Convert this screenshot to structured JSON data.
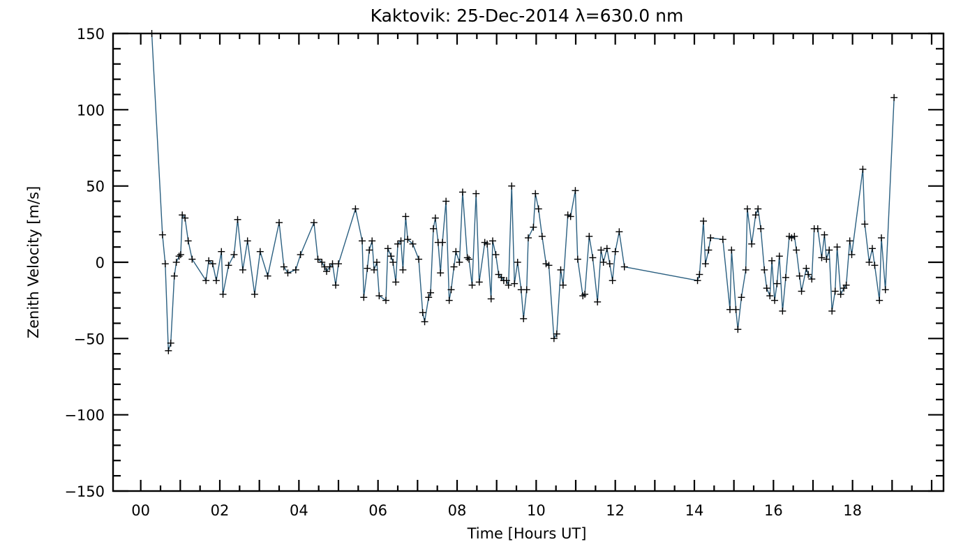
{
  "chart_data": {
    "type": "line",
    "title": "Kaktovik: 25-Dec-2014 λ=630.0 nm",
    "xlabel": "Time [Hours UT]",
    "ylabel": "Zenith Velocity [m/s]",
    "xlim": [
      -0.7,
      20.3
    ],
    "ylim": [
      -150,
      150
    ],
    "xticks": [
      0,
      2,
      4,
      6,
      8,
      10,
      12,
      14,
      16,
      18
    ],
    "xtick_labels": [
      "00",
      "02",
      "04",
      "06",
      "08",
      "10",
      "12",
      "14",
      "16",
      "18"
    ],
    "yticks": [
      150,
      100,
      50,
      0,
      -50,
      -100,
      -150
    ],
    "ytick_labels": [
      "150",
      "100",
      "50",
      "0",
      "−100",
      "−150"
    ],
    "ytick_labels_full": [
      "150",
      "100",
      "50",
      "0",
      "−50",
      "−100",
      "−150"
    ],
    "grid": false,
    "line_color": "#2a5f80",
    "marker": "+",
    "series": [
      {
        "points": [
          [
            0.28,
            150
          ],
          [
            0.55,
            18
          ],
          [
            0.62,
            -1
          ],
          [
            0.7,
            -58
          ],
          [
            0.76,
            -53
          ],
          [
            0.85,
            -9
          ],
          [
            0.9,
            0
          ],
          [
            0.97,
            4
          ],
          [
            1.01,
            5
          ],
          [
            1.05,
            31
          ],
          [
            1.12,
            29
          ],
          [
            1.2,
            14
          ],
          [
            1.3,
            2
          ],
          [
            1.65,
            -12
          ],
          [
            1.72,
            1
          ],
          [
            1.82,
            -1
          ],
          [
            1.91,
            -12
          ],
          [
            2.04,
            7
          ],
          [
            2.08,
            -21
          ],
          [
            2.22,
            -2
          ],
          [
            2.36,
            5
          ],
          [
            2.45,
            28
          ],
          [
            2.58,
            -5
          ],
          [
            2.7,
            14
          ],
          [
            2.88,
            -21
          ],
          [
            3.02,
            7
          ],
          [
            3.21,
            -9
          ],
          [
            3.5,
            26
          ],
          [
            3.62,
            -3
          ],
          [
            3.72,
            -7
          ],
          [
            3.92,
            -5
          ],
          [
            4.04,
            5
          ],
          [
            4.38,
            26
          ],
          [
            4.48,
            2
          ],
          [
            4.58,
            0
          ],
          [
            4.65,
            -3
          ],
          [
            4.7,
            -6
          ],
          [
            4.78,
            -3
          ],
          [
            4.85,
            -1
          ],
          [
            4.93,
            -15
          ],
          [
            5.0,
            -1
          ],
          [
            5.43,
            35
          ],
          [
            5.6,
            14
          ],
          [
            5.64,
            -23
          ],
          [
            5.73,
            -4
          ],
          [
            5.78,
            8
          ],
          [
            5.85,
            14
          ],
          [
            5.9,
            -5
          ],
          [
            5.97,
            0
          ],
          [
            6.03,
            -22
          ],
          [
            6.2,
            -25
          ],
          [
            6.25,
            9
          ],
          [
            6.33,
            4
          ],
          [
            6.38,
            0
          ],
          [
            6.45,
            -13
          ],
          [
            6.5,
            12
          ],
          [
            6.58,
            14
          ],
          [
            6.63,
            -5
          ],
          [
            6.7,
            30
          ],
          [
            6.75,
            15
          ],
          [
            6.88,
            12
          ],
          [
            7.03,
            2
          ],
          [
            7.13,
            -33
          ],
          [
            7.18,
            -39
          ],
          [
            7.28,
            -23
          ],
          [
            7.33,
            -20
          ],
          [
            7.4,
            22
          ],
          [
            7.45,
            29
          ],
          [
            7.52,
            13
          ],
          [
            7.58,
            -7
          ],
          [
            7.63,
            13
          ],
          [
            7.72,
            40
          ],
          [
            7.8,
            -25
          ],
          [
            7.85,
            -18
          ],
          [
            7.92,
            -3
          ],
          [
            7.97,
            7
          ],
          [
            8.06,
            0
          ],
          [
            8.14,
            46
          ],
          [
            8.26,
            3
          ],
          [
            8.3,
            2
          ],
          [
            8.38,
            -15
          ],
          [
            8.48,
            45
          ],
          [
            8.56,
            -13
          ],
          [
            8.7,
            13
          ],
          [
            8.76,
            12
          ],
          [
            8.86,
            -24
          ],
          [
            8.9,
            14
          ],
          [
            8.98,
            5
          ],
          [
            9.05,
            -8
          ],
          [
            9.12,
            -10
          ],
          [
            9.18,
            -12
          ],
          [
            9.25,
            -12
          ],
          [
            9.3,
            -15
          ],
          [
            9.38,
            50
          ],
          [
            9.45,
            -14
          ],
          [
            9.53,
            0
          ],
          [
            9.62,
            -18
          ],
          [
            9.68,
            -37
          ],
          [
            9.76,
            -18
          ],
          [
            9.8,
            16
          ],
          [
            9.93,
            23
          ],
          [
            9.98,
            45
          ],
          [
            10.06,
            35
          ],
          [
            10.15,
            17
          ],
          [
            10.25,
            -1
          ],
          [
            10.32,
            -2
          ],
          [
            10.45,
            -50
          ],
          [
            10.52,
            -47
          ],
          [
            10.62,
            -5
          ],
          [
            10.68,
            -15
          ],
          [
            10.8,
            31
          ],
          [
            10.87,
            30
          ],
          [
            10.99,
            47
          ],
          [
            11.05,
            2
          ],
          [
            11.18,
            -22
          ],
          [
            11.23,
            -21
          ],
          [
            11.34,
            17
          ],
          [
            11.43,
            3
          ],
          [
            11.55,
            -26
          ],
          [
            11.64,
            8
          ],
          [
            11.7,
            0
          ],
          [
            11.79,
            9
          ],
          [
            11.86,
            -1
          ],
          [
            11.93,
            -12
          ],
          [
            12.0,
            7
          ],
          [
            12.1,
            20
          ],
          [
            12.23,
            -3
          ],
          [
            14.08,
            -12
          ],
          [
            14.13,
            -8
          ],
          [
            14.23,
            27
          ],
          [
            14.28,
            -1
          ],
          [
            14.36,
            8
          ],
          [
            14.41,
            16
          ],
          [
            14.72,
            15
          ],
          [
            14.9,
            -31
          ],
          [
            14.94,
            8
          ],
          [
            15.05,
            -31
          ],
          [
            15.1,
            -44
          ],
          [
            15.19,
            -23
          ],
          [
            15.3,
            -5
          ],
          [
            15.34,
            35
          ],
          [
            15.45,
            12
          ],
          [
            15.55,
            31
          ],
          [
            15.61,
            35
          ],
          [
            15.68,
            22
          ],
          [
            15.77,
            -5
          ],
          [
            15.83,
            -17
          ],
          [
            15.91,
            -22
          ],
          [
            15.96,
            1
          ],
          [
            16.03,
            -25
          ],
          [
            16.09,
            -14
          ],
          [
            16.15,
            4
          ],
          [
            16.23,
            -32
          ],
          [
            16.31,
            -10
          ],
          [
            16.4,
            17
          ],
          [
            16.46,
            16
          ],
          [
            16.53,
            17
          ],
          [
            16.58,
            8
          ],
          [
            16.66,
            -9
          ],
          [
            16.71,
            -19
          ],
          [
            16.83,
            -4
          ],
          [
            16.88,
            -8
          ],
          [
            16.97,
            -11
          ],
          [
            17.03,
            22
          ],
          [
            17.12,
            22
          ],
          [
            17.22,
            3
          ],
          [
            17.29,
            18
          ],
          [
            17.34,
            2
          ],
          [
            17.41,
            8
          ],
          [
            17.48,
            -32
          ],
          [
            17.56,
            -19
          ],
          [
            17.61,
            10
          ],
          [
            17.7,
            -21
          ],
          [
            17.78,
            -17
          ],
          [
            17.84,
            -15
          ],
          [
            17.93,
            14
          ],
          [
            17.98,
            5
          ],
          [
            18.26,
            61
          ],
          [
            18.31,
            25
          ],
          [
            18.42,
            0
          ],
          [
            18.5,
            9
          ],
          [
            18.56,
            -2
          ],
          [
            18.68,
            -25
          ],
          [
            18.73,
            16
          ],
          [
            18.83,
            -18
          ],
          [
            19.05,
            108
          ]
        ]
      }
    ]
  }
}
